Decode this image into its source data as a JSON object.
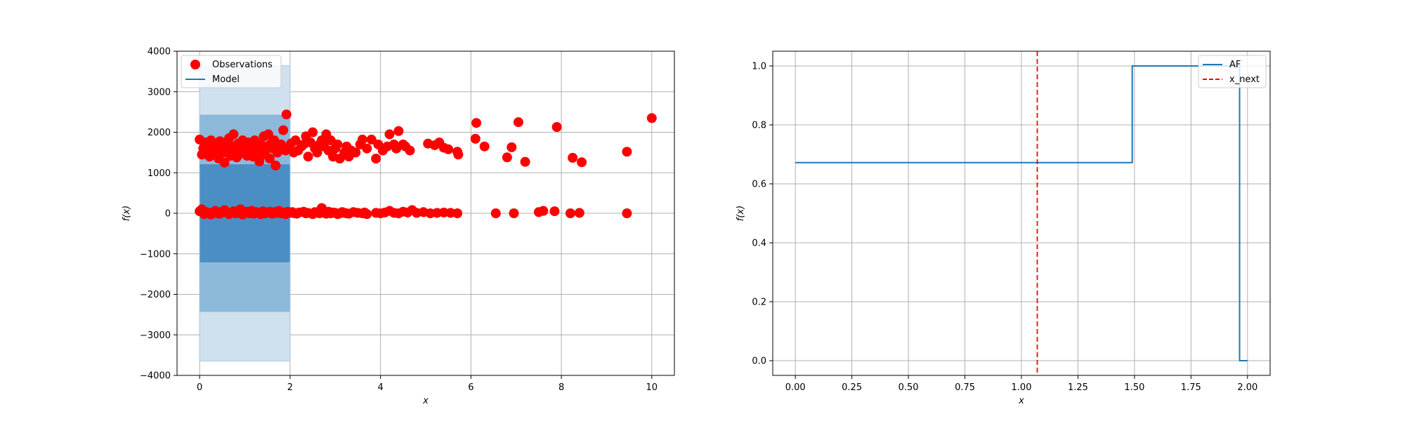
{
  "colors": {
    "model": "#1f77b4",
    "observations": "#ff0000",
    "band_outer": "#cfe0ee",
    "band_mid": "#8cb8da",
    "band_inner": "#4a8ec4",
    "xnext": "#ff0000",
    "grid": "#b0b0b0"
  },
  "chart_data": [
    {
      "type": "scatter",
      "xlabel": "x",
      "ylabel": "f(x)",
      "xlim": [
        -0.5,
        10.5
      ],
      "ylim": [
        -4000,
        4000
      ],
      "xticks": [
        0,
        2,
        4,
        6,
        8,
        10
      ],
      "xtick_labels": [
        "0",
        "2",
        "4",
        "6",
        "8",
        "10"
      ],
      "yticks": [
        -4000,
        -3000,
        -2000,
        -1000,
        0,
        1000,
        2000,
        3000,
        4000
      ],
      "ytick_labels": [
        "−4000",
        "−3000",
        "−2000",
        "−1000",
        "0",
        "1000",
        "2000",
        "3000",
        "4000"
      ],
      "grid": true,
      "legend": {
        "position": "top-left",
        "entries": [
          "Observations",
          "Model"
        ]
      },
      "model": {
        "name": "Model",
        "x": [
          0,
          2
        ],
        "y": [
          0,
          0
        ],
        "bands": [
          {
            "level": "outer",
            "x": [
              0,
              2
            ],
            "lower": -3650,
            "upper": 3650
          },
          {
            "level": "mid",
            "x": [
              0,
              2
            ],
            "lower": -2430,
            "upper": 2430
          },
          {
            "level": "inner",
            "x": [
              0,
              2
            ],
            "lower": -1220,
            "upper": 1220
          }
        ]
      },
      "observations": {
        "name": "Observations",
        "points": [
          [
            0.0,
            1820
          ],
          [
            0.05,
            1450
          ],
          [
            0.08,
            1600
          ],
          [
            0.12,
            1750
          ],
          [
            0.15,
            1520
          ],
          [
            0.18,
            1680
          ],
          [
            0.22,
            1400
          ],
          [
            0.25,
            1800
          ],
          [
            0.28,
            1560
          ],
          [
            0.32,
            1700
          ],
          [
            0.35,
            1480
          ],
          [
            0.38,
            1650
          ],
          [
            0.42,
            1350
          ],
          [
            0.45,
            1780
          ],
          [
            0.48,
            1600
          ],
          [
            0.52,
            1500
          ],
          [
            0.55,
            1250
          ],
          [
            0.58,
            1700
          ],
          [
            0.62,
            1550
          ],
          [
            0.65,
            1850
          ],
          [
            0.68,
            1420
          ],
          [
            0.72,
            1650
          ],
          [
            0.75,
            1950
          ],
          [
            0.78,
            1500
          ],
          [
            0.82,
            1380
          ],
          [
            0.85,
            1720
          ],
          [
            0.88,
            1600
          ],
          [
            0.92,
            1480
          ],
          [
            0.95,
            1800
          ],
          [
            0.98,
            1550
          ],
          [
            1.02,
            1650
          ],
          [
            1.05,
            1420
          ],
          [
            1.08,
            1750
          ],
          [
            1.12,
            1520
          ],
          [
            1.15,
            1680
          ],
          [
            1.18,
            1400
          ],
          [
            1.22,
            1800
          ],
          [
            1.25,
            1600
          ],
          [
            1.28,
            1500
          ],
          [
            1.32,
            1280
          ],
          [
            1.35,
            1700
          ],
          [
            1.38,
            1560
          ],
          [
            1.42,
            1900
          ],
          [
            1.45,
            1450
          ],
          [
            1.48,
            1650
          ],
          [
            1.52,
            1950
          ],
          [
            1.55,
            1350
          ],
          [
            1.58,
            1720
          ],
          [
            1.62,
            1600
          ],
          [
            1.65,
            1800
          ],
          [
            1.68,
            1180
          ],
          [
            1.72,
            1500
          ],
          [
            1.75,
            1650
          ],
          [
            1.8,
            1700
          ],
          [
            1.85,
            2050
          ],
          [
            1.9,
            1550
          ],
          [
            1.92,
            2440
          ],
          [
            1.95,
            1600
          ],
          [
            2.02,
            1720
          ],
          [
            2.08,
            1500
          ],
          [
            2.12,
            1800
          ],
          [
            2.18,
            1550
          ],
          [
            2.25,
            1650
          ],
          [
            2.3,
            1700
          ],
          [
            2.35,
            1900
          ],
          [
            2.4,
            1400
          ],
          [
            2.45,
            1750
          ],
          [
            2.5,
            2000
          ],
          [
            2.55,
            1600
          ],
          [
            2.6,
            1500
          ],
          [
            2.65,
            1700
          ],
          [
            2.7,
            1800
          ],
          [
            2.75,
            1650
          ],
          [
            2.8,
            1950
          ],
          [
            2.85,
            1550
          ],
          [
            2.9,
            1800
          ],
          [
            2.95,
            1400
          ],
          [
            3.0,
            1600
          ],
          [
            3.05,
            1700
          ],
          [
            3.1,
            1350
          ],
          [
            3.2,
            1500
          ],
          [
            3.25,
            1650
          ],
          [
            3.3,
            1400
          ],
          [
            3.35,
            1550
          ],
          [
            3.45,
            1500
          ],
          [
            3.55,
            1700
          ],
          [
            3.6,
            1820
          ],
          [
            3.7,
            1600
          ],
          [
            3.8,
            1820
          ],
          [
            3.9,
            1350
          ],
          [
            3.95,
            1700
          ],
          [
            4.05,
            1550
          ],
          [
            4.15,
            1650
          ],
          [
            4.2,
            1950
          ],
          [
            4.3,
            1700
          ],
          [
            4.35,
            1600
          ],
          [
            4.4,
            2030
          ],
          [
            4.5,
            1700
          ],
          [
            4.55,
            1650
          ],
          [
            4.65,
            1550
          ],
          [
            5.05,
            1720
          ],
          [
            5.2,
            1680
          ],
          [
            5.3,
            1750
          ],
          [
            5.4,
            1620
          ],
          [
            5.5,
            1580
          ],
          [
            5.7,
            1520
          ],
          [
            5.72,
            1450
          ],
          [
            6.1,
            1840
          ],
          [
            6.12,
            2230
          ],
          [
            6.3,
            1650
          ],
          [
            6.8,
            1380
          ],
          [
            6.9,
            1630
          ],
          [
            7.05,
            2250
          ],
          [
            7.2,
            1270
          ],
          [
            7.9,
            2130
          ],
          [
            8.25,
            1370
          ],
          [
            8.45,
            1260
          ],
          [
            9.45,
            1520
          ],
          [
            10.0,
            2350
          ],
          [
            0.0,
            50
          ],
          [
            0.05,
            100
          ],
          [
            0.1,
            -20
          ],
          [
            0.15,
            30
          ],
          [
            0.2,
            10
          ],
          [
            0.25,
            -30
          ],
          [
            0.3,
            20
          ],
          [
            0.35,
            60
          ],
          [
            0.4,
            0
          ],
          [
            0.45,
            -10
          ],
          [
            0.5,
            40
          ],
          [
            0.55,
            80
          ],
          [
            0.6,
            20
          ],
          [
            0.65,
            -20
          ],
          [
            0.7,
            10
          ],
          [
            0.75,
            50
          ],
          [
            0.8,
            0
          ],
          [
            0.85,
            30
          ],
          [
            0.9,
            100
          ],
          [
            0.95,
            -30
          ],
          [
            1.0,
            20
          ],
          [
            1.05,
            40
          ],
          [
            1.1,
            0
          ],
          [
            1.15,
            60
          ],
          [
            1.2,
            -10
          ],
          [
            1.25,
            30
          ],
          [
            1.3,
            10
          ],
          [
            1.35,
            -20
          ],
          [
            1.4,
            50
          ],
          [
            1.45,
            0
          ],
          [
            1.5,
            20
          ],
          [
            1.55,
            40
          ],
          [
            1.6,
            -10
          ],
          [
            1.65,
            30
          ],
          [
            1.7,
            10
          ],
          [
            1.75,
            60
          ],
          [
            1.8,
            0
          ],
          [
            1.85,
            20
          ],
          [
            1.9,
            -20
          ],
          [
            1.95,
            40
          ],
          [
            2.0,
            10
          ],
          [
            2.05,
            30
          ],
          [
            2.1,
            0
          ],
          [
            2.15,
            -10
          ],
          [
            2.2,
            20
          ],
          [
            2.3,
            40
          ],
          [
            2.35,
            0
          ],
          [
            2.4,
            10
          ],
          [
            2.5,
            -20
          ],
          [
            2.55,
            30
          ],
          [
            2.6,
            20
          ],
          [
            2.65,
            0
          ],
          [
            2.7,
            130
          ],
          [
            2.75,
            10
          ],
          [
            2.8,
            -10
          ],
          [
            2.85,
            40
          ],
          [
            2.9,
            0
          ],
          [
            2.95,
            20
          ],
          [
            3.0,
            10
          ],
          [
            3.05,
            -20
          ],
          [
            3.1,
            0
          ],
          [
            3.15,
            30
          ],
          [
            3.2,
            10
          ],
          [
            3.25,
            0
          ],
          [
            3.3,
            -10
          ],
          [
            3.4,
            30
          ],
          [
            3.5,
            10
          ],
          [
            3.6,
            0
          ],
          [
            3.65,
            20
          ],
          [
            3.7,
            -20
          ],
          [
            3.9,
            10
          ],
          [
            4.0,
            0
          ],
          [
            4.1,
            20
          ],
          [
            4.2,
            60
          ],
          [
            4.3,
            10
          ],
          [
            4.4,
            0
          ],
          [
            4.5,
            40
          ],
          [
            4.6,
            20
          ],
          [
            4.7,
            80
          ],
          [
            4.8,
            10
          ],
          [
            4.95,
            30
          ],
          [
            5.1,
            0
          ],
          [
            5.25,
            10
          ],
          [
            5.4,
            20
          ],
          [
            5.55,
            10
          ],
          [
            5.7,
            0
          ],
          [
            6.55,
            0
          ],
          [
            6.95,
            0
          ],
          [
            7.5,
            30
          ],
          [
            7.6,
            60
          ],
          [
            7.85,
            50
          ],
          [
            8.2,
            0
          ],
          [
            8.4,
            10
          ],
          [
            9.45,
            0
          ]
        ]
      }
    },
    {
      "type": "line",
      "xlabel": "x",
      "ylabel": "f(x)",
      "xlim": [
        -0.1,
        2.1
      ],
      "ylim": [
        -0.05,
        1.05
      ],
      "xticks": [
        0.0,
        0.25,
        0.5,
        0.75,
        1.0,
        1.25,
        1.5,
        1.75,
        2.0
      ],
      "xtick_labels": [
        "0.00",
        "0.25",
        "0.50",
        "0.75",
        "1.00",
        "1.25",
        "1.50",
        "1.75",
        "2.00"
      ],
      "yticks": [
        0.0,
        0.2,
        0.4,
        0.6,
        0.8,
        1.0
      ],
      "ytick_labels": [
        "0.0",
        "0.2",
        "0.4",
        "0.6",
        "0.8",
        "1.0"
      ],
      "grid": true,
      "legend": {
        "position": "top-right",
        "entries": [
          "AF",
          "x_next"
        ]
      },
      "series": [
        {
          "name": "AF",
          "style": "step",
          "x": [
            0.0,
            1.49,
            1.49,
            1.965,
            1.965,
            2.0
          ],
          "y": [
            0.672,
            0.672,
            1.0,
            1.0,
            0.0,
            0.0
          ]
        }
      ],
      "vline": {
        "name": "x_next",
        "x": 1.07,
        "style": "dashed"
      }
    }
  ]
}
